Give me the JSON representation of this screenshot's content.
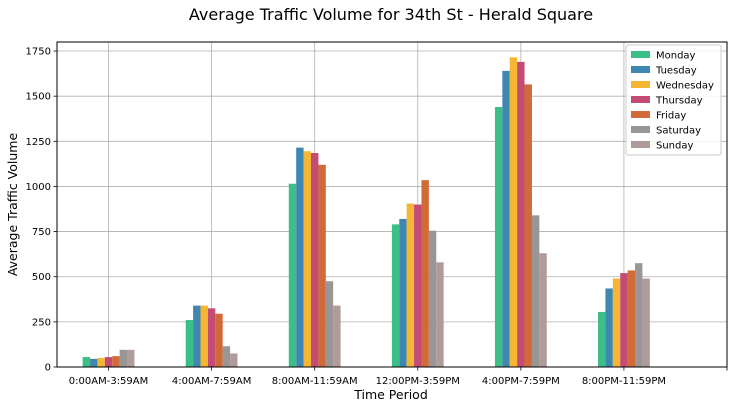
{
  "chart_data": {
    "type": "bar",
    "title": "Average Traffic Volume for 34th St - Herald Square",
    "xlabel": "Time Period",
    "ylabel": "Average Traffic Volume",
    "categories": [
      "0:00AM-3:59AM",
      "4:00AM-7:59AM",
      "8:00AM-11:59AM",
      "12:00PM-3:59PM",
      "4:00PM-7:59PM",
      "8:00PM-11:59PM"
    ],
    "ylim": [
      0,
      1800
    ],
    "yticks": [
      "0",
      "250",
      "500",
      "750",
      "1000",
      "1250",
      "1500",
      "1750"
    ],
    "grid": true,
    "legend_position": "top-right",
    "series": [
      {
        "name": "Monday",
        "color": "#3cbf86",
        "values": [
          55,
          260,
          1015,
          790,
          1440,
          305
        ]
      },
      {
        "name": "Tuesday",
        "color": "#3e87b0",
        "values": [
          45,
          340,
          1215,
          820,
          1640,
          435
        ]
      },
      {
        "name": "Wednesday",
        "color": "#f6b532",
        "values": [
          50,
          340,
          1195,
          905,
          1715,
          490
        ]
      },
      {
        "name": "Thursday",
        "color": "#c44b74",
        "values": [
          55,
          325,
          1185,
          900,
          1690,
          520
        ]
      },
      {
        "name": "Friday",
        "color": "#d06a38",
        "values": [
          60,
          295,
          1120,
          1035,
          1565,
          535
        ]
      },
      {
        "name": "Saturday",
        "color": "#9a9696",
        "values": [
          95,
          115,
          475,
          755,
          840,
          575
        ]
      },
      {
        "name": "Sunday",
        "color": "#b09b9b",
        "values": [
          95,
          75,
          340,
          580,
          630,
          490
        ]
      }
    ]
  }
}
